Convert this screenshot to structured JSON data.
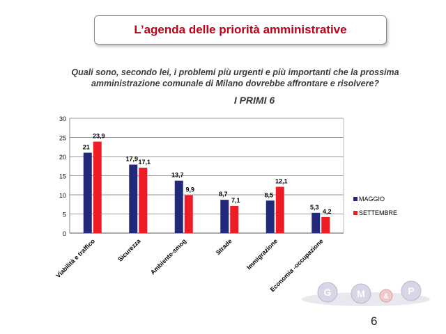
{
  "header": {
    "title": "L’agenda delle priorità amministrative"
  },
  "question": {
    "line1": "Quali sono, secondo lei, i problemi più urgenti e più importanti che la prossima",
    "line2": "amministrazione comunale di Milano dovrebbe affrontare e risolvere?"
  },
  "subtitle": "I PRIMI  6",
  "page_number": "6",
  "logo": {
    "letters": [
      "G",
      "M",
      "&",
      "P"
    ]
  },
  "chart_data": {
    "type": "bar",
    "categories": [
      "Viabilità e traffico",
      "Sicurezza",
      "Ambiente-smog",
      "Strade",
      "Immigrazione",
      "Economia -occupazione"
    ],
    "series": [
      {
        "name": "MAGGIO",
        "values": [
          21,
          17.9,
          13.7,
          8.7,
          8.5,
          5.3
        ],
        "labels": [
          "21",
          "17,9",
          "13,7",
          "8,7",
          "8,5",
          "5,3"
        ],
        "color": "#23297a"
      },
      {
        "name": "SETTEMBRE",
        "values": [
          23.9,
          17.1,
          9.9,
          7.1,
          12.1,
          4.2
        ],
        "labels": [
          "23,9",
          "17,1",
          "9,9",
          "7,1",
          "12,1",
          "4,2"
        ],
        "color": "#ee1c25"
      }
    ],
    "yticks": [
      0,
      5,
      10,
      15,
      20,
      25,
      30
    ],
    "ylim": [
      0,
      30
    ],
    "grid": true,
    "legend": "right"
  }
}
